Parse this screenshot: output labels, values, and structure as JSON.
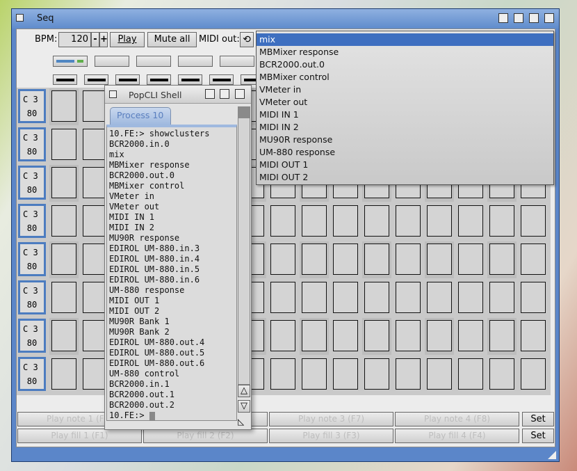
{
  "window": {
    "title": "Seq"
  },
  "toolbar": {
    "bpm_label": "BPM:",
    "bpm_value": "120",
    "minus": "-",
    "plus": "+",
    "play": "Play",
    "mute_all": "Mute all",
    "midi_out_label": "MIDI out:"
  },
  "midi_out_list": {
    "selected": "mix",
    "items": [
      "mix",
      "MBMixer response",
      "BCR2000.out.0",
      "MBMixer control",
      "VMeter in",
      "VMeter out",
      "MIDI IN 1",
      "MIDI IN 2",
      "MU90R response",
      "UM-880 response",
      "MIDI OUT 1",
      "MIDI OUT 2"
    ]
  },
  "tracks": [
    {
      "note": "C 3",
      "velocity": "80"
    },
    {
      "note": "C 3",
      "velocity": "80"
    },
    {
      "note": "C 3",
      "velocity": "80"
    },
    {
      "note": "C 3",
      "velocity": "80"
    },
    {
      "note": "C 3",
      "velocity": "80"
    },
    {
      "note": "C 3",
      "velocity": "80"
    },
    {
      "note": "C 3",
      "velocity": "80"
    },
    {
      "note": "C 3",
      "velocity": "80"
    }
  ],
  "bottom": {
    "notes": [
      "Play note 1 (F5)",
      "Play note 2 (F6)",
      "Play note 3 (F7)",
      "Play note 4 (F8)"
    ],
    "fills": [
      "Play fill 1 (F1)",
      "Play fill 2 (F2)",
      "Play fill 3 (F3)",
      "Play fill 4 (F4)"
    ],
    "set": "Set"
  },
  "shell": {
    "title": "PopCLI Shell",
    "tab": "Process 10",
    "lines": [
      "10.FE:> showclusters",
      "BCR2000.in.0",
      "mix",
      "MBMixer response",
      "BCR2000.out.0",
      "MBMixer control",
      "VMeter in",
      "VMeter out",
      "MIDI IN 1",
      "MIDI IN 2",
      "MU90R response",
      "EDIROL UM-880.in.3",
      "EDIROL UM-880.in.4",
      "EDIROL UM-880.in.5",
      "EDIROL UM-880.in.6",
      "UM-880 response",
      "MIDI OUT 1",
      "MIDI OUT 2",
      "MU90R Bank 1",
      "MU90R Bank 2",
      "EDIROL UM-880.out.4",
      "EDIROL UM-880.out.5",
      "EDIROL UM-880.out.6",
      "UM-880 control",
      "BCR2000.in.1",
      "BCR2000.out.1",
      "BCR2000.out.2"
    ],
    "prompt": "10.FE:>"
  },
  "colors": {
    "accent": "#3e6fc0",
    "title_bar": "#6d95d3"
  }
}
